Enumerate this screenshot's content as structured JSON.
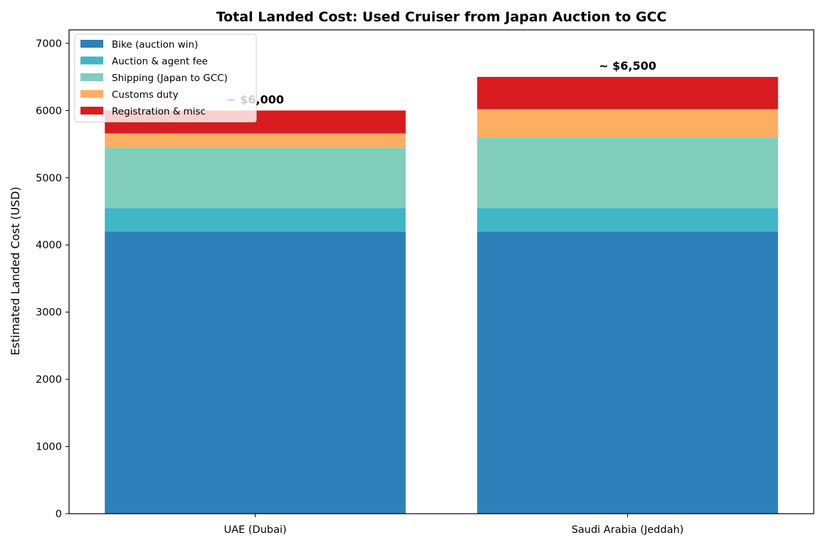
{
  "chart_data": {
    "type": "bar",
    "stacked": true,
    "title": "Total Landed Cost: Used Cruiser from Japan Auction to GCC",
    "xlabel": "",
    "ylabel": "Estimated Landed Cost (USD)",
    "ylim": [
      0,
      7200
    ],
    "yticks": [
      0,
      1000,
      2000,
      3000,
      4000,
      5000,
      6000,
      7000
    ],
    "grid": false,
    "legend_position": "top-left",
    "categories": [
      "UAE (Dubai)",
      "Saudi Arabia (Jeddah)"
    ],
    "series": [
      {
        "name": "Bike (auction win)",
        "color": "#2e80ba",
        "values": [
          4200,
          4200
        ]
      },
      {
        "name": "Auction & agent fee",
        "color": "#41b6c6",
        "values": [
          350,
          350
        ]
      },
      {
        "name": "Shipping (Japan to GCC)",
        "color": "#80cdbb",
        "values": [
          900,
          1050
        ]
      },
      {
        "name": "Customs duty",
        "color": "#feae63",
        "values": [
          210,
          420
        ]
      },
      {
        "name": "Registration & misc",
        "color": "#d81b1e",
        "values": [
          340,
          480
        ]
      }
    ],
    "total_labels": [
      "~ $6,000",
      "~ $6,500"
    ]
  }
}
